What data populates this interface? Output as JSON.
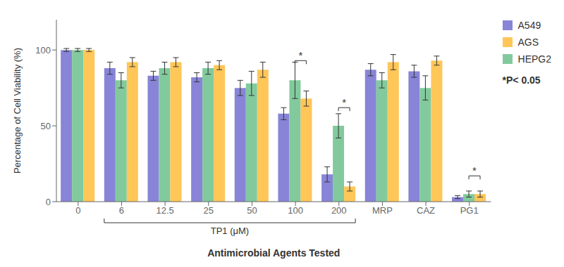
{
  "chart_data": {
    "type": "bar",
    "categories": [
      "0",
      "6",
      "12.5",
      "25",
      "50",
      "100",
      "200",
      "MRP",
      "CAZ",
      "PG1"
    ],
    "series": [
      {
        "name": "A549",
        "color": "#8884d8",
        "values": [
          100,
          88,
          83,
          82,
          75,
          58,
          18,
          87,
          86,
          3
        ],
        "errors": [
          1,
          4,
          3,
          3,
          5,
          4,
          5,
          4,
          4,
          1
        ]
      },
      {
        "name": "HEPG2",
        "color": "#82ca9d",
        "values": [
          100,
          80,
          88,
          88,
          78,
          80,
          50,
          80,
          75,
          5
        ],
        "errors": [
          1,
          5,
          4,
          4,
          8,
          12,
          8,
          5,
          8,
          2
        ]
      },
      {
        "name": "AGS",
        "color": "#ffc658",
        "values": [
          100,
          92,
          92,
          90,
          87,
          68,
          10,
          92,
          93,
          5
        ],
        "errors": [
          1,
          3,
          3,
          3,
          5,
          5,
          3,
          5,
          3,
          2
        ]
      }
    ],
    "ylabel": "Percentage of Cell Viability (%)",
    "xlabel": "Antimicrobial Agents Tested",
    "ylim": [
      0,
      120
    ],
    "yticks": [
      0,
      50,
      100
    ],
    "grid": false,
    "legend": "right",
    "annotations": [
      {
        "text": "*",
        "category": "100",
        "series": [
          "HEPG2",
          "AGS"
        ],
        "y": 93
      },
      {
        "text": "*",
        "category": "200",
        "series": [
          "HEPG2",
          "AGS"
        ],
        "y": 62
      },
      {
        "text": "*",
        "category": "PG1",
        "series": [
          "HEPG2",
          "AGS"
        ],
        "y": 17
      },
      {
        "text": "TP1 (μM)",
        "categories": [
          "6",
          "200"
        ]
      },
      {
        "text": "*P< 0.05"
      }
    ]
  }
}
